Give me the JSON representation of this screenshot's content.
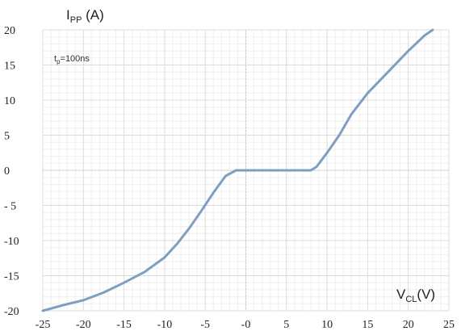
{
  "chart_data": {
    "type": "line",
    "ylabel_main": "I",
    "ylabel_sub": "PP",
    "ylabel_unit": " (A)",
    "xlabel_main": "V",
    "xlabel_sub": "CL",
    "xlabel_unit": "(V)",
    "annotation_main": "t",
    "annotation_sub": "p",
    "annotation_rest": "=100ns",
    "xlim": [
      -25,
      25
    ],
    "ylim": [
      -20,
      20
    ],
    "x_ticks": [
      -25,
      -20,
      -15,
      -10,
      -5,
      0,
      5,
      10,
      15,
      20,
      25
    ],
    "x_tick_labels": [
      "-25",
      "-20",
      "-15",
      "-10",
      "-5",
      "-0",
      "5",
      "10",
      "15",
      "20",
      "25"
    ],
    "y_ticks": [
      20,
      15,
      10,
      5,
      0,
      -5,
      -10,
      -15,
      -20
    ],
    "y_tick_labels": [
      "20",
      "15",
      "10",
      "5",
      "0",
      "- 5",
      "-10",
      "-15",
      "-20"
    ],
    "grid": true,
    "line_color": "#7f9fc0",
    "series": [
      {
        "x": [
          -25,
          -22.5,
          -20,
          -17.5,
          -15,
          -12.5,
          -10,
          -8.5,
          -7,
          -5.5,
          -4,
          -2.5,
          -1.2,
          0,
          2,
          4,
          6,
          8,
          8.7,
          10,
          11.5,
          13,
          15,
          17.5,
          20,
          22,
          23
        ],
        "y": [
          -20,
          -19.2,
          -18.5,
          -17.4,
          -16,
          -14.5,
          -12.4,
          -10.5,
          -8.3,
          -5.8,
          -3.2,
          -0.8,
          0,
          0,
          0,
          0,
          0,
          0,
          0.5,
          2.5,
          5,
          8,
          11,
          14,
          17,
          19.2,
          20
        ]
      }
    ]
  }
}
